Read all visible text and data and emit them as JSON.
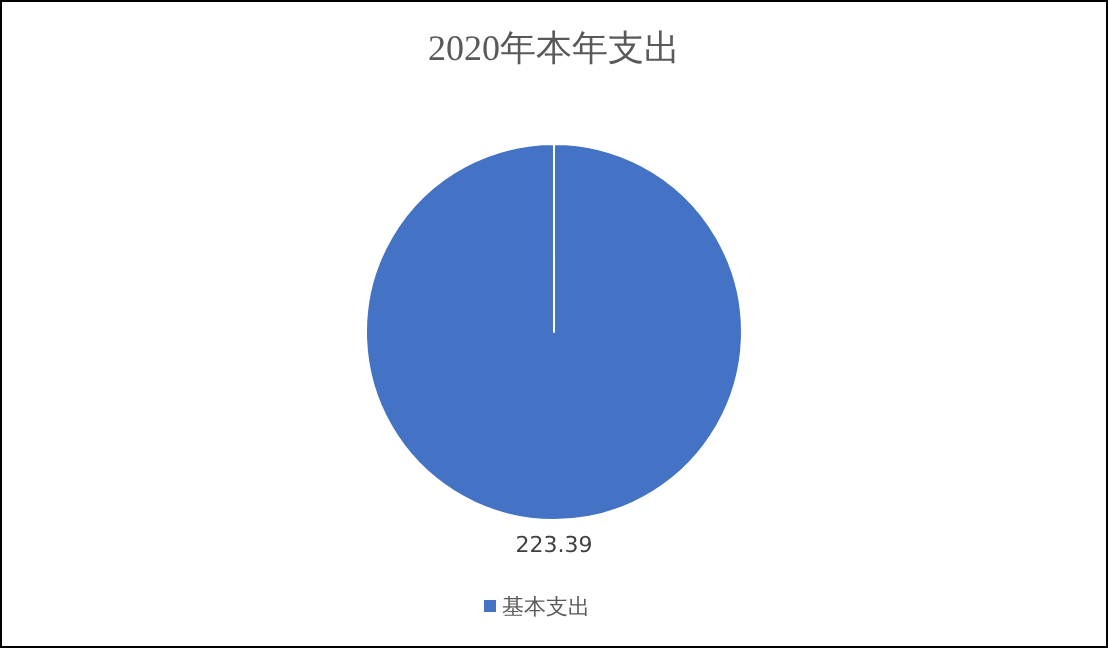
{
  "chart_data": {
    "type": "pie",
    "title": "2020年本年支出",
    "categories": [
      "基本支出"
    ],
    "values": [
      223.39
    ],
    "colors": [
      "#4472c4"
    ],
    "data_labels": true,
    "legend": "bottom"
  }
}
